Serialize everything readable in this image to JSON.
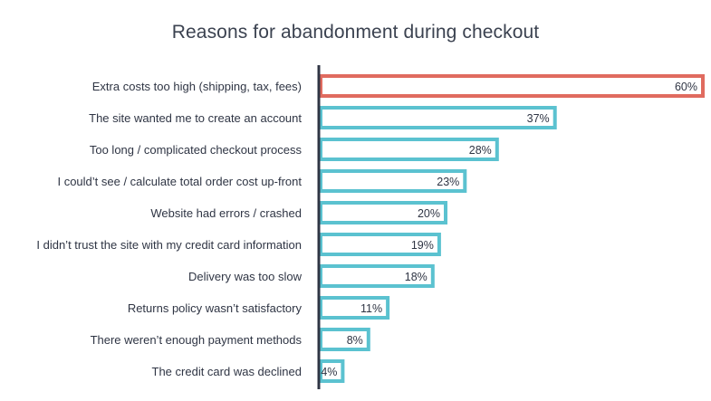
{
  "chart_data": {
    "type": "bar",
    "orientation": "horizontal",
    "title": "Reasons for abandonment during checkout",
    "categories": [
      "Extra costs too high (shipping, tax, fees)",
      "The site wanted me to create an account",
      "Too long / complicated checkout process",
      "I could’t see / calculate total order cost up-front",
      "Website had errors / crashed",
      "I didn’t trust the site with my credit card information",
      "Delivery was too slow",
      "Returns policy wasn’t satisfactory",
      "There weren’t enough payment methods",
      "The credit card was declined"
    ],
    "values": [
      60,
      37,
      28,
      23,
      20,
      19,
      18,
      11,
      8,
      4
    ],
    "value_labels": [
      "60%",
      "37%",
      "28%",
      "23%",
      "20%",
      "19%",
      "18%",
      "11%",
      "8%",
      "4%"
    ],
    "xlim": [
      0,
      60
    ],
    "highlight_index": 0,
    "grid": false,
    "legend": "none",
    "colors": {
      "highlight": "#e06b5f",
      "bar": "#5bc2d0",
      "axis": "#2f3544",
      "label_text": "#2f3544",
      "title_text": "#3b4250"
    }
  }
}
